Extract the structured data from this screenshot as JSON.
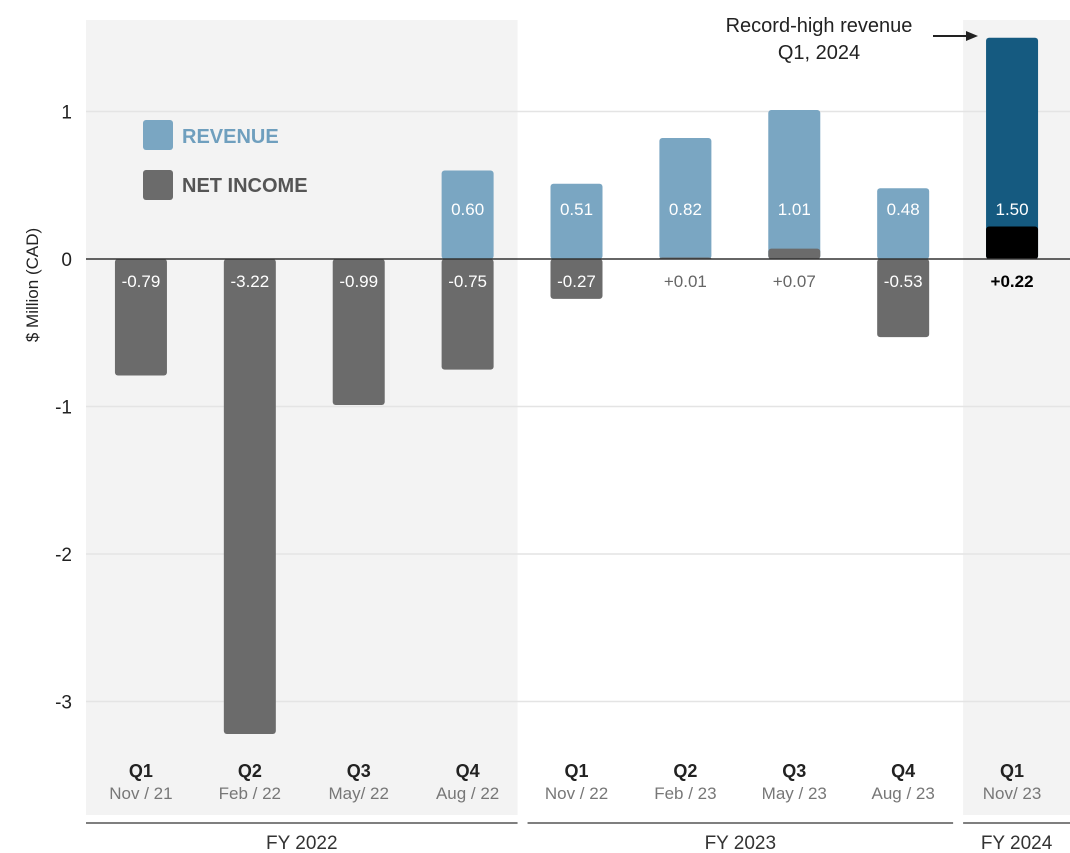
{
  "chart_data": {
    "type": "bar",
    "ylabel": "$ Million (CAD)",
    "ylim": [
      -3.4,
      1.62
    ],
    "yticks": [
      {
        "value": 1,
        "label": "1"
      },
      {
        "value": 0,
        "label": "0"
      },
      {
        "value": -1,
        "label": "-1"
      },
      {
        "value": -2,
        "label": "-2"
      },
      {
        "value": -3,
        "label": "-3"
      }
    ],
    "categories": [
      {
        "quarter": "Q1",
        "date": "Nov / 21"
      },
      {
        "quarter": "Q2",
        "date": "Feb / 22"
      },
      {
        "quarter": "Q3",
        "date": "May/ 22"
      },
      {
        "quarter": "Q4",
        "date": "Aug / 22"
      },
      {
        "quarter": "Q1",
        "date": "Nov / 22"
      },
      {
        "quarter": "Q2",
        "date": "Feb / 23"
      },
      {
        "quarter": "Q3",
        "date": "May / 23"
      },
      {
        "quarter": "Q4",
        "date": "Aug / 23"
      },
      {
        "quarter": "Q1",
        "date": "Nov/ 23"
      }
    ],
    "series": [
      {
        "name": "REVENUE",
        "values": [
          null,
          null,
          null,
          0.6,
          0.51,
          0.82,
          1.01,
          0.48,
          1.5
        ],
        "labels": [
          "",
          "",
          "",
          "0.60",
          "0.51",
          "0.82",
          "1.01",
          "0.48",
          "1.50"
        ],
        "color": "#7aa6c2",
        "highlight_color": "#155a80"
      },
      {
        "name": "NET INCOME",
        "values": [
          -0.79,
          -3.22,
          -0.99,
          -0.75,
          -0.27,
          0.01,
          0.07,
          -0.53,
          0.22
        ],
        "labels": [
          "-0.79",
          "-3.22",
          "-0.99",
          "-0.75",
          "-0.27",
          "+0.01",
          "+0.07",
          "-0.53",
          "+0.22"
        ],
        "color": "#6b6b6b",
        "highlight_color": "#000000"
      }
    ],
    "fiscal_years": [
      {
        "label": "FY 2022",
        "start": 0,
        "end": 3,
        "shaded": true
      },
      {
        "label": "FY 2023",
        "start": 4,
        "end": 7,
        "shaded": false
      },
      {
        "label": "FY 2024",
        "start": 8,
        "end": 8,
        "shaded": true
      }
    ],
    "highlight_index": 8,
    "annotation": {
      "line1": "Record-high revenue",
      "line2": "Q1, 2024"
    },
    "legend": {
      "position": "top-left"
    },
    "grid": true
  }
}
